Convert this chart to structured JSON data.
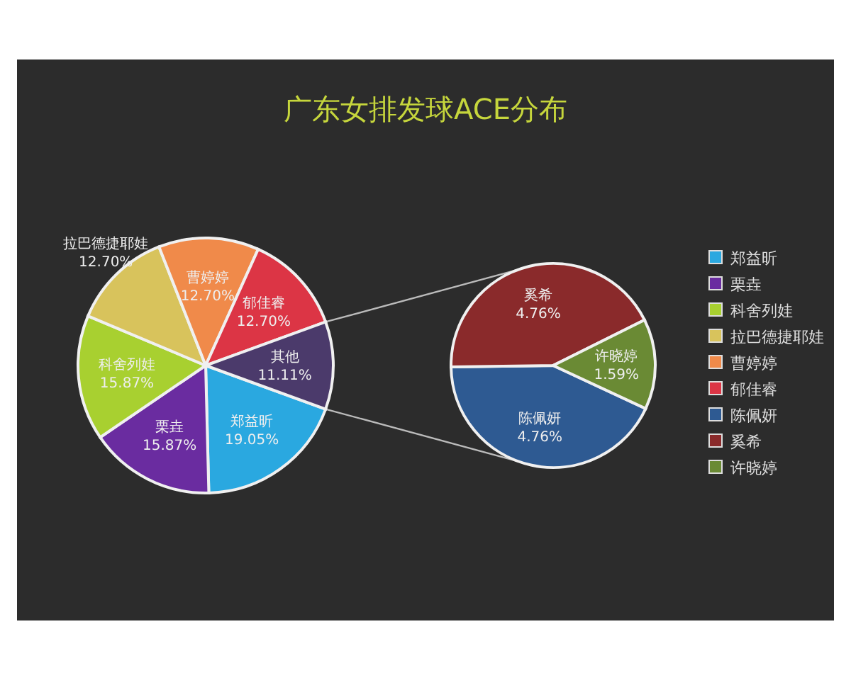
{
  "chart_data": [
    {
      "type": "pie",
      "title": "广东女排发球ACE分布",
      "categories": [
        "郑益昕",
        "栗垚",
        "科舍列娃",
        "拉巴德捷耶娃",
        "曹婷婷",
        "郁佳睿",
        "其他"
      ],
      "values": [
        19.05,
        15.87,
        15.87,
        12.7,
        12.7,
        12.7,
        11.11
      ],
      "value_labels": [
        "19.05%",
        "15.87%",
        "15.87%",
        "12.70%",
        "12.70%",
        "12.70%",
        "11.11%"
      ],
      "colors": [
        "#2aa8e0",
        "#6a2ca0",
        "#a8d030",
        "#d8c35c",
        "#f08a4a",
        "#dc3545",
        "#4b3a6b"
      ],
      "legend": "right"
    },
    {
      "type": "pie",
      "categories": [
        "陈佩妍",
        "奚希",
        "许晓婷"
      ],
      "values": [
        4.76,
        4.76,
        1.59
      ],
      "value_labels": [
        "4.76%",
        "4.76%",
        "1.59%"
      ],
      "colors": [
        "#2e5a92",
        "#8a2a2b",
        "#6a8a34"
      ],
      "legend": "right"
    }
  ]
}
